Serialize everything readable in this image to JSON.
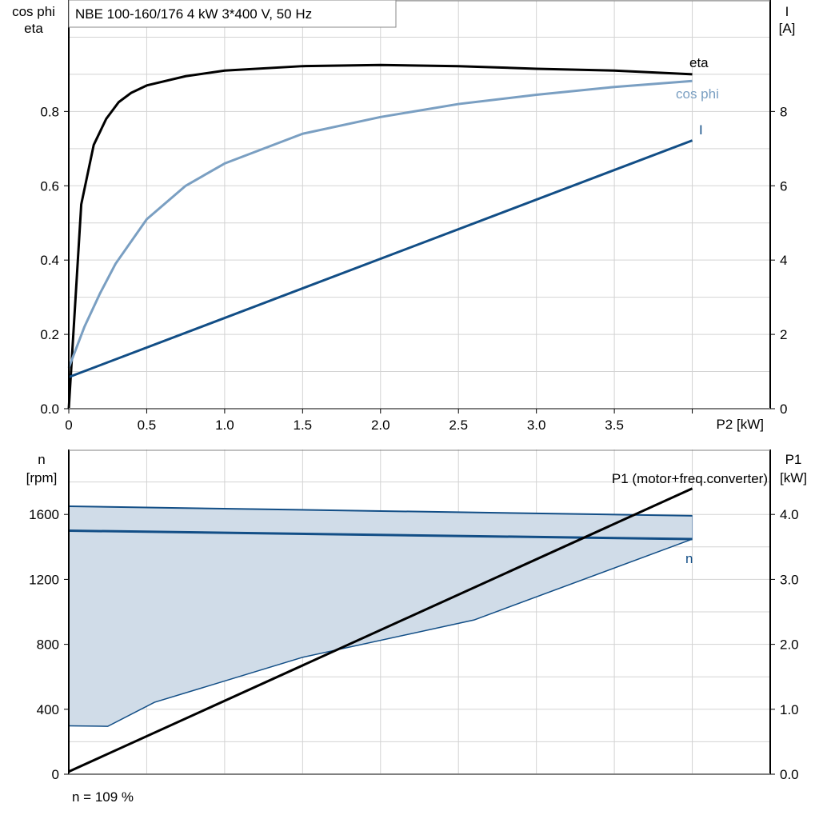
{
  "chart_data": [
    {
      "type": "line",
      "title": "NBE 100-160/176   4 kW   3*400 V, 50 Hz",
      "xlabel": "P2 [kW]",
      "ylabel_left": [
        "cos phi",
        "eta"
      ],
      "ylabel_right": [
        "I",
        "[A]"
      ],
      "xlim": [
        0,
        4.5
      ],
      "ylim_left": [
        0,
        1.1
      ],
      "ylim_right": [
        0,
        11
      ],
      "x_ticks": [
        "0",
        "0.5",
        "1.0",
        "1.5",
        "2.0",
        "2.5",
        "3.0",
        "3.5"
      ],
      "y_ticks_left": [
        "0.0",
        "0.2",
        "0.4",
        "0.6",
        "0.8"
      ],
      "y_ticks_right": [
        "0",
        "2",
        "4",
        "6",
        "8"
      ],
      "grid": true,
      "series": [
        {
          "name": "eta",
          "axis": "left",
          "color": "#000000",
          "x": [
            0,
            0.08,
            0.16,
            0.24,
            0.32,
            0.4,
            0.5,
            0.75,
            1.0,
            1.5,
            2.0,
            2.5,
            3.0,
            3.5,
            4.0
          ],
          "y": [
            0,
            0.55,
            0.71,
            0.78,
            0.825,
            0.85,
            0.87,
            0.895,
            0.91,
            0.922,
            0.925,
            0.922,
            0.915,
            0.91,
            0.9
          ]
        },
        {
          "name": "cos phi",
          "axis": "left",
          "color": "#7a9fc2",
          "x": [
            0,
            0.1,
            0.2,
            0.3,
            0.5,
            0.75,
            1.0,
            1.5,
            2.0,
            2.5,
            3.0,
            3.5,
            4.0
          ],
          "y": [
            0.11,
            0.22,
            0.31,
            0.39,
            0.51,
            0.6,
            0.66,
            0.74,
            0.785,
            0.82,
            0.845,
            0.866,
            0.882
          ]
        },
        {
          "name": "I",
          "axis": "right",
          "color": "#124e86",
          "x": [
            0,
            4.0
          ],
          "y": [
            0.85,
            7.22
          ]
        }
      ]
    },
    {
      "type": "line",
      "ylabel_left": [
        "n",
        "[rpm]"
      ],
      "ylabel_right": [
        "P1",
        "[kW]"
      ],
      "xlim": [
        0,
        4.5
      ],
      "ylim_left": [
        0,
        2000
      ],
      "ylim_right": [
        0,
        5
      ],
      "y_ticks_left": [
        "0",
        "400",
        "800",
        "1200",
        "1600"
      ],
      "y_ticks_right": [
        "0.0",
        "1.0",
        "2.0",
        "3.0",
        "4.0"
      ],
      "grid": true,
      "series": [
        {
          "name": "n",
          "axis": "left",
          "color": "#124e86",
          "x": [
            0,
            4.0
          ],
          "y": [
            1500,
            1448
          ]
        },
        {
          "name": "P1 (motor+freq.converter)",
          "axis": "right",
          "color": "#000000",
          "x": [
            0,
            4.0
          ],
          "y": [
            0.04,
            4.4
          ]
        }
      ],
      "speed_range": {
        "color": "#d0dce8",
        "upper": {
          "x": [
            0,
            4.0
          ],
          "y": [
            1650,
            1592
          ]
        },
        "lower": {
          "x": [
            0,
            0.25,
            0.55,
            1.5,
            2.6,
            4.0
          ],
          "y": [
            298,
            295,
            443,
            720,
            950,
            1448
          ]
        }
      },
      "annotation": "n = 109 %"
    }
  ]
}
